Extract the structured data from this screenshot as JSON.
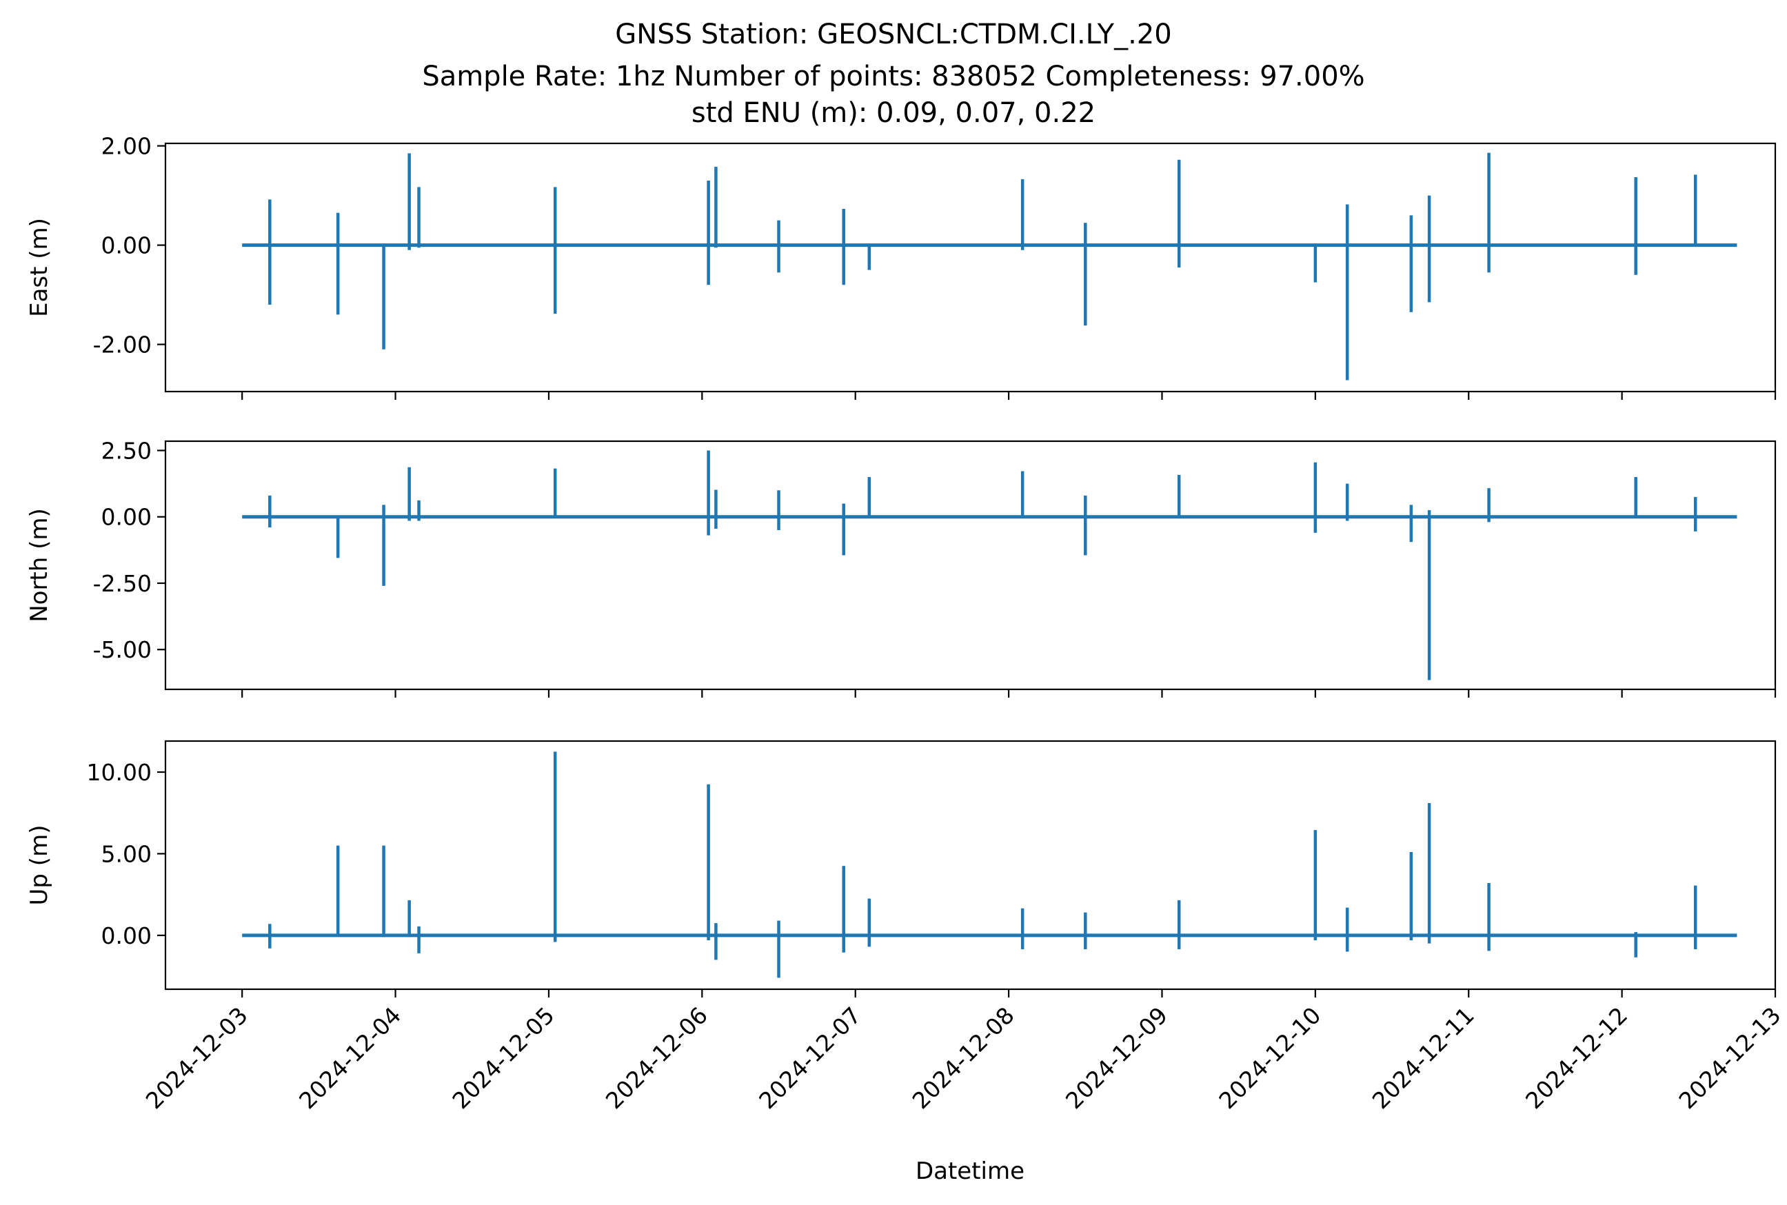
{
  "chart_data": {
    "type": "line",
    "title_lines": [
      "GNSS Station: GEOSNCL:CTDM.CI.LY_.20",
      "Sample Rate: 1hz   Number of points: 838052    Completeness:  97.00%",
      "std ENU (m):  0.09, 0.07, 0.22"
    ],
    "xlabel": "Datetime",
    "x_range": [
      "2024-12-02T12:00",
      "2024-12-13T00:00"
    ],
    "x_ticks": [
      "2024-12-03",
      "2024-12-04",
      "2024-12-05",
      "2024-12-06",
      "2024-12-07",
      "2024-12-08",
      "2024-12-09",
      "2024-12-10",
      "2024-12-11",
      "2024-12-12",
      "2024-12-13"
    ],
    "data_start": "2024-12-03T00:00",
    "data_end": "2024-12-12T18:00",
    "line_color": "#1f77b4",
    "grid": false,
    "legend": "none",
    "panels": [
      {
        "name": "East",
        "ylabel": "East (m)",
        "ylim": [
          -2.95,
          2.05
        ],
        "yticks": [
          2.0,
          0.0,
          -2.0
        ],
        "ytick_labels": [
          "2.00",
          "0.00",
          "-2.00"
        ],
        "spikes": [
          {
            "t": "2024-12-03T04:20",
            "hi": 0.92,
            "lo": -1.2
          },
          {
            "t": "2024-12-03T15:00",
            "hi": 0.65,
            "lo": -1.4
          },
          {
            "t": "2024-12-03T22:10",
            "hi": 0.0,
            "lo": -2.1
          },
          {
            "t": "2024-12-04T02:10",
            "hi": 1.85,
            "lo": -0.1
          },
          {
            "t": "2024-12-04T03:40",
            "hi": 1.17,
            "lo": -0.05
          },
          {
            "t": "2024-12-05T01:00",
            "hi": 1.17,
            "lo": -1.38
          },
          {
            "t": "2024-12-06T01:00",
            "hi": 1.3,
            "lo": -0.8
          },
          {
            "t": "2024-12-06T02:10",
            "hi": 1.58,
            "lo": -0.05
          },
          {
            "t": "2024-12-06T12:00",
            "hi": 0.5,
            "lo": -0.55
          },
          {
            "t": "2024-12-06T22:10",
            "hi": 0.73,
            "lo": -0.8
          },
          {
            "t": "2024-12-07T02:10",
            "hi": 0.0,
            "lo": -0.5
          },
          {
            "t": "2024-12-08T02:10",
            "hi": 1.33,
            "lo": -0.1
          },
          {
            "t": "2024-12-08T12:00",
            "hi": 0.45,
            "lo": -1.62
          },
          {
            "t": "2024-12-09T02:40",
            "hi": 1.72,
            "lo": -0.45
          },
          {
            "t": "2024-12-10T00:00",
            "hi": 0.0,
            "lo": -0.75
          },
          {
            "t": "2024-12-10T05:00",
            "hi": 0.82,
            "lo": -2.72
          },
          {
            "t": "2024-12-10T15:00",
            "hi": 0.6,
            "lo": -1.35
          },
          {
            "t": "2024-12-10T17:50",
            "hi": 1.0,
            "lo": -1.15
          },
          {
            "t": "2024-12-11T03:10",
            "hi": 1.86,
            "lo": -0.55
          },
          {
            "t": "2024-12-12T02:10",
            "hi": 1.37,
            "lo": -0.6
          },
          {
            "t": "2024-12-12T11:30",
            "hi": 1.42,
            "lo": 0.0
          }
        ]
      },
      {
        "name": "North",
        "ylabel": "North (m)",
        "ylim": [
          -6.5,
          2.85
        ],
        "yticks": [
          2.5,
          0.0,
          -2.5,
          -5.0
        ],
        "ytick_labels": [
          "2.50",
          "0.00",
          "-2.50",
          "-5.00"
        ],
        "spikes": [
          {
            "t": "2024-12-03T04:20",
            "hi": 0.8,
            "lo": -0.4
          },
          {
            "t": "2024-12-03T15:00",
            "hi": 0.05,
            "lo": -1.55
          },
          {
            "t": "2024-12-03T22:10",
            "hi": 0.45,
            "lo": -2.6
          },
          {
            "t": "2024-12-04T02:10",
            "hi": 1.87,
            "lo": -0.15
          },
          {
            "t": "2024-12-04T03:40",
            "hi": 0.62,
            "lo": -0.15
          },
          {
            "t": "2024-12-05T01:00",
            "hi": 1.82,
            "lo": -0.05
          },
          {
            "t": "2024-12-06T01:00",
            "hi": 2.5,
            "lo": -0.7
          },
          {
            "t": "2024-12-06T02:10",
            "hi": 1.02,
            "lo": -0.45
          },
          {
            "t": "2024-12-06T12:00",
            "hi": 1.0,
            "lo": -0.5
          },
          {
            "t": "2024-12-06T22:10",
            "hi": 0.5,
            "lo": -1.45
          },
          {
            "t": "2024-12-07T02:10",
            "hi": 1.5,
            "lo": -0.05
          },
          {
            "t": "2024-12-08T02:10",
            "hi": 1.72,
            "lo": -0.05
          },
          {
            "t": "2024-12-08T12:00",
            "hi": 0.8,
            "lo": -1.45
          },
          {
            "t": "2024-12-09T02:40",
            "hi": 1.58,
            "lo": -0.05
          },
          {
            "t": "2024-12-10T00:00",
            "hi": 2.05,
            "lo": -0.6
          },
          {
            "t": "2024-12-10T05:00",
            "hi": 1.25,
            "lo": -0.15
          },
          {
            "t": "2024-12-10T15:00",
            "hi": 0.45,
            "lo": -0.95
          },
          {
            "t": "2024-12-10T17:50",
            "hi": 0.25,
            "lo": -6.15
          },
          {
            "t": "2024-12-11T03:10",
            "hi": 1.08,
            "lo": -0.2
          },
          {
            "t": "2024-12-12T02:10",
            "hi": 1.5,
            "lo": -0.05
          },
          {
            "t": "2024-12-12T11:30",
            "hi": 0.75,
            "lo": -0.55
          }
        ]
      },
      {
        "name": "Up",
        "ylabel": "Up (m)",
        "ylim": [
          -3.3,
          11.9
        ],
        "yticks": [
          10.0,
          5.0,
          0.0
        ],
        "ytick_labels": [
          "10.00",
          "5.00",
          "0.00"
        ],
        "spikes": [
          {
            "t": "2024-12-03T04:20",
            "hi": 0.7,
            "lo": -0.8
          },
          {
            "t": "2024-12-03T15:00",
            "hi": 5.5,
            "lo": 0.0
          },
          {
            "t": "2024-12-03T22:10",
            "hi": 5.5,
            "lo": -0.1
          },
          {
            "t": "2024-12-04T02:10",
            "hi": 2.15,
            "lo": -0.1
          },
          {
            "t": "2024-12-04T03:40",
            "hi": 0.55,
            "lo": -1.1
          },
          {
            "t": "2024-12-05T01:00",
            "hi": 11.25,
            "lo": -0.4
          },
          {
            "t": "2024-12-06T01:00",
            "hi": 9.25,
            "lo": -0.3
          },
          {
            "t": "2024-12-06T02:10",
            "hi": 0.75,
            "lo": -1.5
          },
          {
            "t": "2024-12-06T12:00",
            "hi": 0.9,
            "lo": -2.6
          },
          {
            "t": "2024-12-06T22:10",
            "hi": 4.25,
            "lo": -1.05
          },
          {
            "t": "2024-12-07T02:10",
            "hi": 2.25,
            "lo": -0.7
          },
          {
            "t": "2024-12-08T02:10",
            "hi": 1.65,
            "lo": -0.85
          },
          {
            "t": "2024-12-08T12:00",
            "hi": 1.4,
            "lo": -0.85
          },
          {
            "t": "2024-12-09T02:40",
            "hi": 2.15,
            "lo": -0.85
          },
          {
            "t": "2024-12-10T00:00",
            "hi": 6.45,
            "lo": -0.3
          },
          {
            "t": "2024-12-10T05:00",
            "hi": 1.7,
            "lo": -1.0
          },
          {
            "t": "2024-12-10T15:00",
            "hi": 5.1,
            "lo": -0.3
          },
          {
            "t": "2024-12-10T17:50",
            "hi": 8.1,
            "lo": -0.5
          },
          {
            "t": "2024-12-11T03:10",
            "hi": 3.2,
            "lo": -0.95
          },
          {
            "t": "2024-12-12T02:10",
            "hi": 0.2,
            "lo": -1.35
          },
          {
            "t": "2024-12-12T11:30",
            "hi": 3.05,
            "lo": -0.85
          }
        ]
      }
    ]
  }
}
